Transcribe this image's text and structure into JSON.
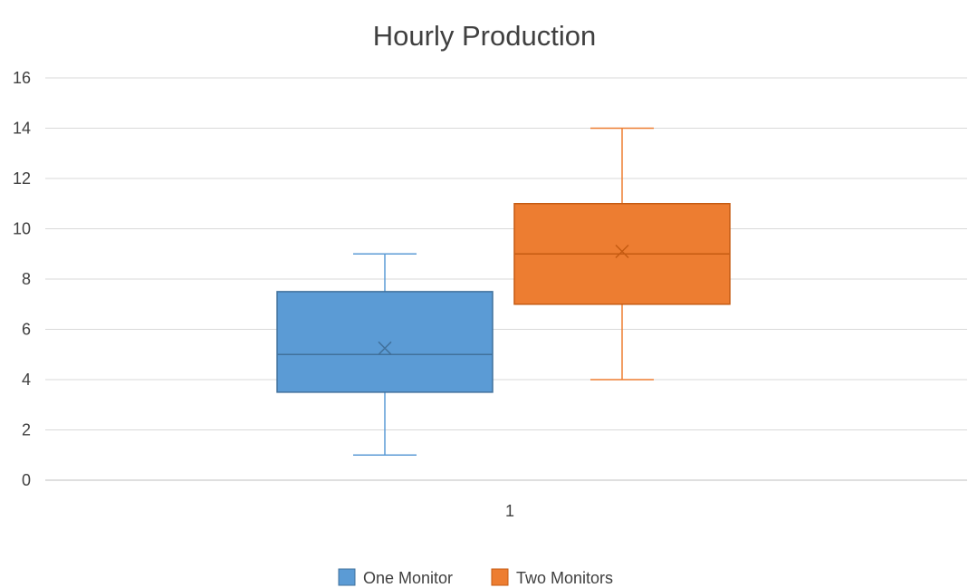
{
  "chart_data": {
    "type": "box",
    "title": "Hourly Production",
    "categories": [
      "1"
    ],
    "ylim": [
      0,
      16
    ],
    "yticks": [
      0,
      2,
      4,
      6,
      8,
      10,
      12,
      14,
      16
    ],
    "grid": true,
    "legend_position": "bottom",
    "series": [
      {
        "name": "One Monitor",
        "color": "#5B9BD5",
        "edge_color": "#41719C",
        "min": 1,
        "q1": 3.5,
        "median": 5,
        "q3": 7.5,
        "max": 9,
        "mean": 5.25
      },
      {
        "name": "Two Monitors",
        "color": "#ED7D31",
        "edge_color": "#C55A11",
        "min": 4,
        "q1": 7,
        "median": 9,
        "q3": 11,
        "max": 14,
        "mean": 9.1
      }
    ]
  }
}
